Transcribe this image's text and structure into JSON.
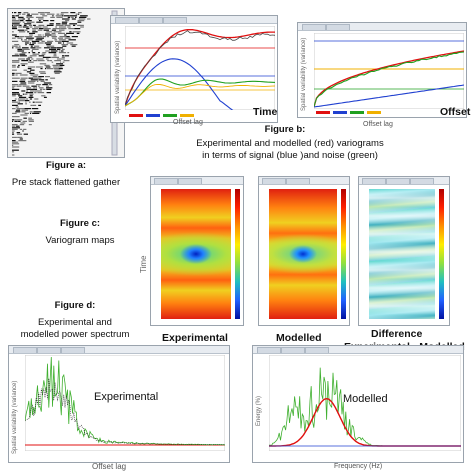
{
  "panel_a": {
    "caption_label": "Figure a:",
    "caption_text": "Pre stack flattened gather"
  },
  "panel_b": {
    "time_label": "Time",
    "x_axis": "Offset lag",
    "y_axis": "Spatial variability (variance)",
    "offset_label": "Offset",
    "x_axis_right": "Offset lag",
    "caption_label": "Figure b:",
    "caption_line1": "Experimental and modelled (red) variograms",
    "caption_line2": "in terms of signal (blue )and noise (green)"
  },
  "panel_c": {
    "caption_label": "Figure c:",
    "caption_text": "Variogram maps",
    "time_axis": "Time",
    "map1_label": "Experimental",
    "map2_label": "Modelled",
    "map3_label_line1": "Difference",
    "map3_label_line2": "Experimental - Modelled"
  },
  "panel_d": {
    "caption_label": "Figure d:",
    "caption_line1": "Experimental and",
    "caption_line2": "modelled power spectrum",
    "left_overlay": "Experimental",
    "left_x_axis": "Offset lag",
    "left_y_axis": "Spatial variability (variance)",
    "right_overlay": "Modelled",
    "right_x_axis": "Frequency (Hz)",
    "right_y_axis": "Energy (%)"
  },
  "colors": {
    "model_red": "#e01010",
    "signal_blue": "#2040d0",
    "noise_green": "#20a020",
    "yellow": "#f0b000",
    "spectrum_green": "#40b030",
    "panel_border": "#9aa3ad"
  }
}
